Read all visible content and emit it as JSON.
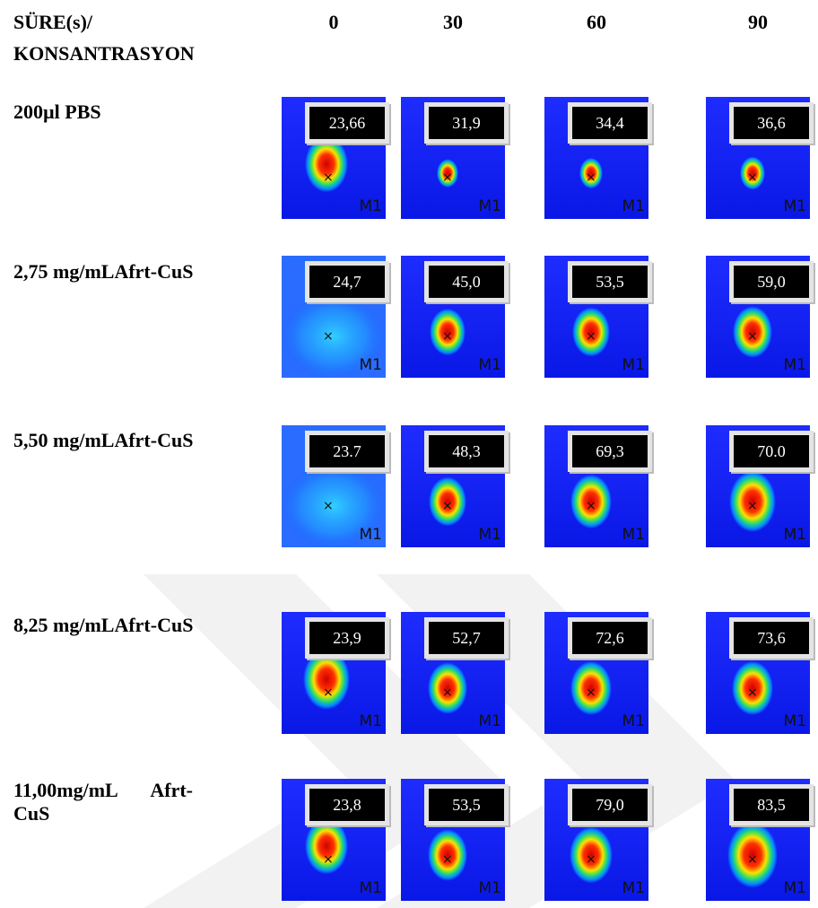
{
  "header": {
    "title_lines": [
      "SÜRE(s)/",
      "KONSANTRASYON"
    ],
    "times": [
      "0",
      "30",
      "60",
      "90"
    ]
  },
  "marker": "M1",
  "rows": [
    {
      "label": "200µl PBS",
      "values": [
        "23,66",
        "31,9",
        "34,4",
        "36,6"
      ]
    },
    {
      "label": "2,75 mg/mLAfrt-CuS",
      "values": [
        "24,7",
        "45,0",
        "53,5",
        "59,0"
      ]
    },
    {
      "label": "5,50 mg/mLAfrt-CuS",
      "values": [
        "23.7",
        "48,3",
        "69,3",
        "70.0"
      ]
    },
    {
      "label": "8,25 mg/mLAfrt-CuS",
      "values": [
        "23,9",
        "52,7",
        "72,6",
        "73,6"
      ]
    },
    {
      "label": "11,00mg/mL Afrt-CuS",
      "values": [
        "23,8",
        "53,5",
        "79,0",
        "83,5"
      ]
    }
  ]
}
